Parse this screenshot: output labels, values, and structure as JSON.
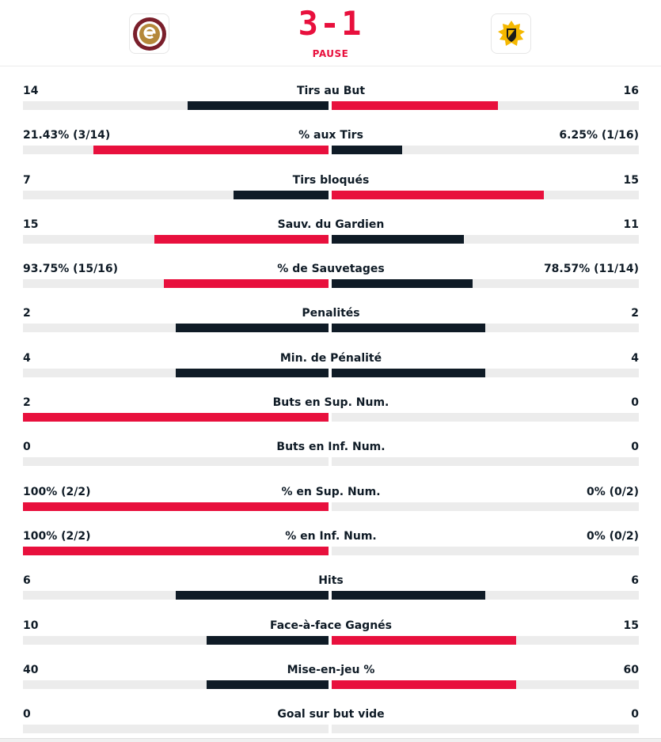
{
  "match": {
    "score": "3-1",
    "status": "PAUSE",
    "home_logo": "geneve-servette-logo",
    "away_logo": "sc-bern-style-yellow-logo",
    "colors": {
      "accent": "#e8103d",
      "dark": "#0f1b26",
      "track": "#ececec"
    }
  },
  "stats": [
    {
      "name": "Tirs au But",
      "left": "14",
      "right": "16",
      "left_frac": 0.46,
      "right_frac": 0.54,
      "left_color": "dark",
      "right_color": "red"
    },
    {
      "name": "% aux Tirs",
      "left": "21.43% (3/14)",
      "right": "6.25% (1/16)",
      "left_frac": 0.77,
      "right_frac": 0.23,
      "left_color": "red",
      "right_color": "dark"
    },
    {
      "name": "Tirs bloqués",
      "left": "7",
      "right": "15",
      "left_frac": 0.31,
      "right_frac": 0.69,
      "left_color": "dark",
      "right_color": "red"
    },
    {
      "name": "Sauv. du Gardien",
      "left": "15",
      "right": "11",
      "left_frac": 0.57,
      "right_frac": 0.43,
      "left_color": "red",
      "right_color": "dark"
    },
    {
      "name": "% de Sauvetages",
      "left": "93.75% (15/16)",
      "right": "78.57% (11/14)",
      "left_frac": 0.54,
      "right_frac": 0.46,
      "left_color": "red",
      "right_color": "dark"
    },
    {
      "name": "Penalités",
      "left": "2",
      "right": "2",
      "left_frac": 0.5,
      "right_frac": 0.5,
      "left_color": "dark",
      "right_color": "dark"
    },
    {
      "name": "Min. de Pénalité",
      "left": "4",
      "right": "4",
      "left_frac": 0.5,
      "right_frac": 0.5,
      "left_color": "dark",
      "right_color": "dark"
    },
    {
      "name": "Buts en Sup. Num.",
      "left": "2",
      "right": "0",
      "left_frac": 1.0,
      "right_frac": 0.0,
      "left_color": "red",
      "right_color": "dark"
    },
    {
      "name": "Buts en Inf. Num.",
      "left": "0",
      "right": "0",
      "left_frac": 0.0,
      "right_frac": 0.0,
      "left_color": "dark",
      "right_color": "dark"
    },
    {
      "name": "% en Sup. Num.",
      "left": "100% (2/2)",
      "right": "0% (0/2)",
      "left_frac": 1.0,
      "right_frac": 0.0,
      "left_color": "red",
      "right_color": "dark"
    },
    {
      "name": "% en Inf. Num.",
      "left": "100% (2/2)",
      "right": "0% (0/2)",
      "left_frac": 1.0,
      "right_frac": 0.0,
      "left_color": "red",
      "right_color": "dark"
    },
    {
      "name": "Hits",
      "left": "6",
      "right": "6",
      "left_frac": 0.5,
      "right_frac": 0.5,
      "left_color": "dark",
      "right_color": "dark"
    },
    {
      "name": "Face-à-face Gagnés",
      "left": "10",
      "right": "15",
      "left_frac": 0.4,
      "right_frac": 0.6,
      "left_color": "dark",
      "right_color": "red"
    },
    {
      "name": "Mise-en-jeu %",
      "left": "40",
      "right": "60",
      "left_frac": 0.4,
      "right_frac": 0.6,
      "left_color": "dark",
      "right_color": "red"
    },
    {
      "name": "Goal sur but vide",
      "left": "0",
      "right": "0",
      "left_frac": 0.0,
      "right_frac": 0.0,
      "left_color": "dark",
      "right_color": "dark"
    }
  ]
}
